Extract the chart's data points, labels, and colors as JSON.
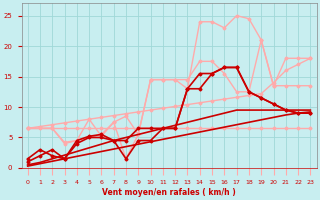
{
  "bg_color": "#c8eef0",
  "grid_color": "#a0d8d8",
  "xlabel": "Vent moyen/en rafales ( km/h )",
  "xlim": [
    -0.5,
    23.5
  ],
  "ylim": [
    0,
    27
  ],
  "xticks": [
    0,
    1,
    2,
    3,
    4,
    5,
    6,
    7,
    8,
    9,
    10,
    11,
    12,
    13,
    14,
    15,
    16,
    17,
    18,
    19,
    20,
    21,
    22,
    23
  ],
  "yticks": [
    0,
    5,
    10,
    15,
    20,
    25
  ],
  "lines": [
    {
      "x": [
        0,
        1,
        2,
        3,
        4,
        5,
        6,
        7,
        8,
        9,
        10,
        11,
        12,
        13,
        14,
        15,
        16,
        17,
        18,
        19,
        20,
        21,
        22,
        23
      ],
      "y": [
        6.5,
        6.5,
        6.5,
        6.5,
        6.5,
        6.5,
        6.5,
        6.5,
        6.5,
        6.5,
        6.5,
        6.5,
        6.5,
        6.5,
        6.5,
        6.5,
        6.5,
        6.5,
        6.5,
        6.5,
        6.5,
        6.5,
        6.5,
        6.5
      ],
      "color": "#ffaaaa",
      "lw": 1.0,
      "marker": "D",
      "ms": 1.5
    },
    {
      "x": [
        0,
        1,
        2,
        3,
        4,
        5,
        6,
        7,
        8,
        9,
        10,
        11,
        12,
        13,
        14,
        15,
        16,
        17,
        18,
        19,
        20,
        21,
        22,
        23
      ],
      "y": [
        6.5,
        6.8,
        7.1,
        7.4,
        7.7,
        8.0,
        8.3,
        8.6,
        8.9,
        9.2,
        9.5,
        9.8,
        10.1,
        10.4,
        10.7,
        11.0,
        11.3,
        11.6,
        11.9,
        12.2,
        14.0,
        16.0,
        17.0,
        18.0
      ],
      "color": "#ffaaaa",
      "lw": 1.0,
      "marker": "D",
      "ms": 1.5
    },
    {
      "x": [
        0,
        2,
        3,
        4,
        5,
        6,
        7,
        8,
        9,
        10,
        11,
        12,
        13,
        14,
        15,
        16,
        17,
        18,
        19,
        20,
        21,
        22,
        23
      ],
      "y": [
        6.5,
        6.5,
        4.2,
        4.5,
        8.0,
        5.2,
        7.5,
        1.5,
        5.5,
        14.5,
        14.5,
        14.5,
        13.0,
        24.0,
        24.0,
        23.0,
        25.0,
        24.5,
        21.0,
        13.5,
        13.5,
        13.5,
        13.5
      ],
      "color": "#ffaaaa",
      "lw": 1.0,
      "marker": "D",
      "ms": 1.5
    },
    {
      "x": [
        0,
        2,
        3,
        4,
        5,
        6,
        7,
        8,
        9,
        10,
        11,
        12,
        13,
        14,
        15,
        16,
        17,
        18,
        19,
        20,
        21,
        22,
        23
      ],
      "y": [
        6.5,
        6.5,
        4.0,
        4.5,
        5.0,
        5.5,
        7.5,
        8.5,
        5.5,
        14.5,
        14.5,
        14.5,
        14.5,
        17.5,
        17.5,
        15.5,
        12.5,
        12.5,
        21.0,
        13.5,
        18.0,
        18.0,
        18.0
      ],
      "color": "#ffaaaa",
      "lw": 1.0,
      "marker": "D",
      "ms": 1.5
    },
    {
      "x": [
        0,
        1,
        2,
        3,
        4,
        5,
        6,
        7,
        8,
        9,
        10,
        11,
        12,
        13,
        14,
        15,
        16,
        17,
        18,
        19,
        20,
        21,
        22,
        23
      ],
      "y": [
        0.3,
        0.7,
        1.1,
        1.5,
        1.9,
        2.3,
        2.7,
        3.1,
        3.5,
        3.9,
        4.3,
        4.7,
        5.1,
        5.5,
        5.9,
        6.3,
        6.7,
        7.1,
        7.5,
        7.9,
        8.3,
        8.7,
        9.0,
        9.2
      ],
      "color": "#cc0000",
      "lw": 1.2,
      "marker": null,
      "ms": 0
    },
    {
      "x": [
        0,
        1,
        2,
        3,
        4,
        5,
        6,
        7,
        8,
        9,
        10,
        11,
        12,
        13,
        14,
        15,
        16,
        17,
        18,
        19,
        20,
        21,
        22,
        23
      ],
      "y": [
        0.5,
        0.9,
        1.5,
        2.1,
        2.7,
        3.3,
        3.9,
        4.5,
        5.0,
        5.5,
        6.0,
        6.5,
        7.0,
        7.5,
        8.0,
        8.5,
        9.0,
        9.5,
        9.5,
        9.5,
        9.5,
        9.5,
        9.5,
        9.5
      ],
      "color": "#cc0000",
      "lw": 1.2,
      "marker": null,
      "ms": 0
    },
    {
      "x": [
        0,
        1,
        2,
        3,
        4,
        5,
        6,
        7,
        8,
        9,
        10,
        11,
        12,
        13,
        14,
        15,
        16,
        17,
        18,
        19,
        20,
        21,
        22,
        23
      ],
      "y": [
        1.5,
        3.0,
        2.0,
        1.5,
        4.0,
        5.0,
        5.0,
        4.5,
        4.5,
        6.5,
        6.5,
        6.5,
        6.5,
        13.0,
        13.0,
        15.5,
        16.5,
        16.5,
        12.5,
        11.5,
        10.5,
        9.5,
        9.0,
        9.0
      ],
      "color": "#cc0000",
      "lw": 1.2,
      "marker": "D",
      "ms": 1.5
    },
    {
      "x": [
        0,
        1,
        2,
        3,
        4,
        5,
        6,
        7,
        8,
        9,
        10,
        11,
        12,
        13,
        14,
        15,
        16,
        17,
        18,
        19,
        20,
        21,
        22,
        23
      ],
      "y": [
        1.0,
        2.0,
        3.0,
        1.5,
        4.5,
        5.2,
        5.5,
        4.5,
        1.5,
        4.5,
        4.5,
        6.5,
        6.5,
        13.0,
        15.5,
        15.5,
        16.5,
        16.5,
        12.5,
        11.5,
        10.5,
        9.5,
        9.0,
        9.0
      ],
      "color": "#cc0000",
      "lw": 1.2,
      "marker": "D",
      "ms": 1.5
    }
  ]
}
